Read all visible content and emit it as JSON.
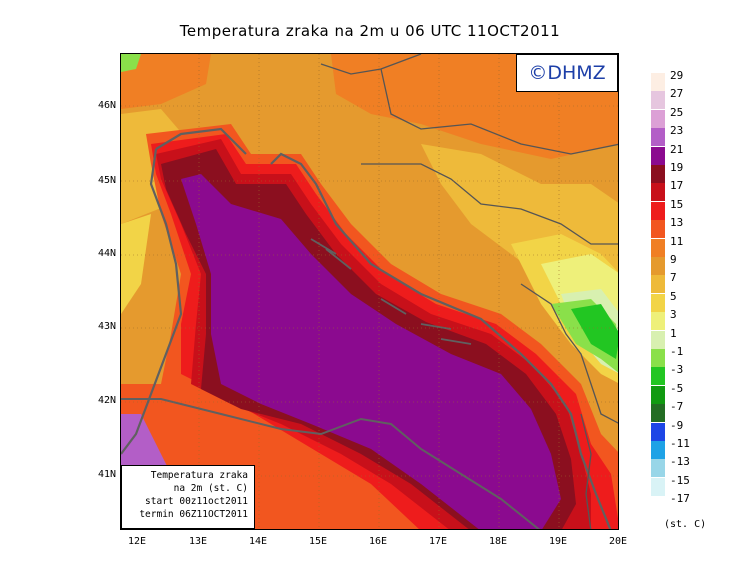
{
  "title": "Temperatura zraka na 2m u 06 UTC 11OCT2011",
  "logo_text": "©DHMZ",
  "info": {
    "line1": "Temperatura zraka",
    "line2": "na 2m (st. C)",
    "line3": "start 00z11oct2011",
    "line4": "termin 06Z11OCT2011"
  },
  "axes": {
    "lat_ticks": [
      "46N",
      "45N",
      "44N",
      "43N",
      "42N",
      "41N"
    ],
    "lon_ticks": [
      "12E",
      "13E",
      "14E",
      "15E",
      "16E",
      "17E",
      "18E",
      "19E",
      "20E"
    ]
  },
  "legend": {
    "unit": "(st. C)",
    "levels": [
      {
        "label": "29",
        "color": "#fdeee3"
      },
      {
        "label": "27",
        "color": "#e6c6df"
      },
      {
        "label": "25",
        "color": "#dca0d6"
      },
      {
        "label": "23",
        "color": "#b35ec7"
      },
      {
        "label": "21",
        "color": "#8b0a8f"
      },
      {
        "label": "19",
        "color": "#8b0f1f"
      },
      {
        "label": "17",
        "color": "#c8101a"
      },
      {
        "label": "15",
        "color": "#ee1c1c"
      },
      {
        "label": "13",
        "color": "#f2561f"
      },
      {
        "label": "11",
        "color": "#f07f24"
      },
      {
        "label": "9",
        "color": "#e59a2e"
      },
      {
        "label": "7",
        "color": "#eeba3a"
      },
      {
        "label": "5",
        "color": "#f2d447"
      },
      {
        "label": "3",
        "color": "#eef07a"
      },
      {
        "label": "1",
        "color": "#d8f0b0"
      },
      {
        "label": "-1",
        "color": "#8ae04a"
      },
      {
        "label": "-3",
        "color": "#22c622"
      },
      {
        "label": "-5",
        "color": "#119a11"
      },
      {
        "label": "-7",
        "color": "#236d23"
      },
      {
        "label": "-9",
        "color": "#1d46e6"
      },
      {
        "label": "-11",
        "color": "#1ea2e6"
      },
      {
        "label": "-13",
        "color": "#98d6e8"
      },
      {
        "label": "-15",
        "color": "#d9f3f6"
      },
      {
        "label": "-17",
        "color": "#ffffff"
      }
    ]
  }
}
